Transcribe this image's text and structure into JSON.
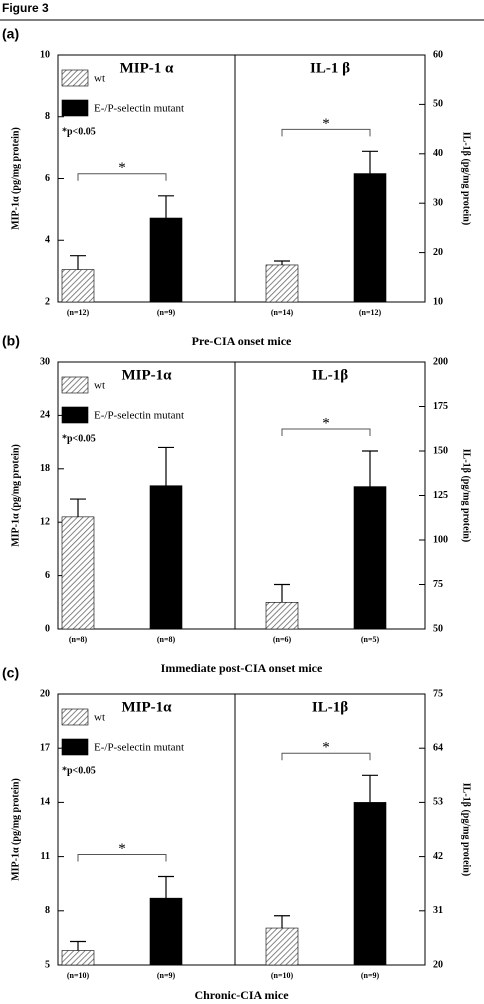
{
  "header": "Figure 3",
  "chart_data": [
    {
      "type": "bar",
      "panel": "(a)",
      "title": "Pre-CIA onset mice",
      "ylabel": "MIP-1α (pg/mg protein)",
      "y2label": "IL-1β (pg/mg protein)",
      "ylim": [
        2,
        10
      ],
      "yticks": [
        2,
        4,
        6,
        8,
        10
      ],
      "y2lim": [
        10,
        60
      ],
      "y2ticks": [
        10,
        20,
        30,
        40,
        50,
        60
      ],
      "note": "*p<0.05",
      "series": [
        {
          "name": "wt",
          "color": "#666666",
          "pattern": "hatch",
          "values": [
            3.05,
            17.5
          ],
          "errors": [
            0.45,
            0.8
          ]
        },
        {
          "name": "E-/P-selectin mutant",
          "color": "#000000",
          "values": [
            4.72,
            36
          ],
          "errors": [
            0.72,
            4.5
          ]
        }
      ],
      "groups": [
        {
          "title": "MIP-1 α",
          "axis": "y",
          "categories": [
            "(n=12)",
            "(n=9)"
          ],
          "sig_label": "*"
        },
        {
          "title": "IL-1 β",
          "axis": "y2",
          "categories": [
            "(n=14)",
            "(n=12)"
          ],
          "sig_label": "*"
        }
      ]
    },
    {
      "type": "bar",
      "panel": "(b)",
      "title": "Immediate post-CIA onset mice",
      "ylabel": "MIP-1α (pg/mg protein)",
      "y2label": "IL-1β (pg/mg protein)",
      "ylim": [
        0,
        30
      ],
      "yticks": [
        0,
        6,
        12,
        18,
        24,
        30
      ],
      "y2lim": [
        50,
        200
      ],
      "y2ticks": [
        50,
        75,
        100,
        125,
        150,
        175,
        200
      ],
      "note": "*p<0.05",
      "series": [
        {
          "name": "wt",
          "color": "#666666",
          "pattern": "hatch",
          "values": [
            12.6,
            65
          ],
          "errors": [
            2.0,
            10
          ]
        },
        {
          "name": "E-/P-selectin mutant",
          "color": "#000000",
          "values": [
            16.1,
            130
          ],
          "errors": [
            4.3,
            20
          ]
        }
      ],
      "groups": [
        {
          "title": "MIP-1α",
          "axis": "y",
          "categories": [
            "(n=8)",
            "(n=8)"
          ]
        },
        {
          "title": "IL-1β",
          "axis": "y2",
          "categories": [
            "(n=6)",
            "(n=5)"
          ],
          "sig_label": "*"
        }
      ]
    },
    {
      "type": "bar",
      "panel": "(c)",
      "title": "Chronic-CIA mice",
      "ylabel": "MIP-1α (pg/mg protein)",
      "y2label": "IL-1β (pg/mg protein)",
      "ylim": [
        5,
        20
      ],
      "yticks": [
        5,
        8,
        11,
        14,
        17,
        20
      ],
      "y2lim": [
        20,
        75
      ],
      "y2ticks": [
        20,
        31,
        42,
        53,
        64,
        75
      ],
      "note": "*p<0.05",
      "series": [
        {
          "name": "wt",
          "color": "#666666",
          "pattern": "hatch",
          "values": [
            5.8,
            27.5
          ],
          "errors": [
            0.5,
            2.5
          ]
        },
        {
          "name": "E-/P-selectin mutant",
          "color": "#000000",
          "values": [
            8.7,
            53
          ],
          "errors": [
            1.2,
            5.5
          ]
        }
      ],
      "groups": [
        {
          "title": "MIP-1α",
          "axis": "y",
          "categories": [
            "(n=10)",
            "(n=9)"
          ],
          "sig_label": "*"
        },
        {
          "title": "IL-1β",
          "axis": "y2",
          "categories": [
            "(n=10)",
            "(n=9)"
          ],
          "sig_label": "*"
        }
      ]
    }
  ]
}
